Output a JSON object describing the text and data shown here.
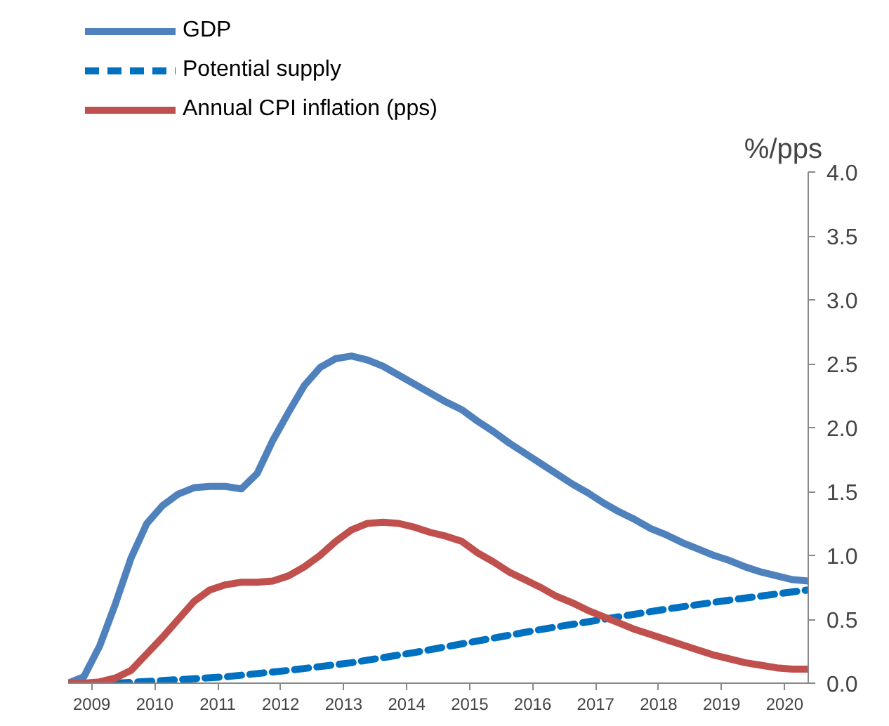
{
  "chart_data": {
    "type": "line",
    "ylabel": "%/pps",
    "x": [
      2009,
      2009.25,
      2009.5,
      2009.75,
      2010,
      2010.25,
      2010.5,
      2010.75,
      2011,
      2011.25,
      2011.5,
      2011.75,
      2012,
      2012.25,
      2012.5,
      2012.75,
      2013,
      2013.25,
      2013.5,
      2013.75,
      2014,
      2014.25,
      2014.5,
      2014.75,
      2015,
      2015.25,
      2015.5,
      2015.75,
      2016,
      2016.25,
      2016.5,
      2016.75,
      2017,
      2017.25,
      2017.5,
      2017.75,
      2018,
      2018.25,
      2018.5,
      2018.75,
      2019,
      2019.25,
      2019.5,
      2019.75,
      2020,
      2020.25,
      2020.5,
      2020.75
    ],
    "series": [
      {
        "name": "GDP",
        "color": "#4f81bd",
        "line_style": "solid",
        "values": [
          0,
          0.05,
          0.29,
          0.62,
          0.98,
          1.25,
          1.39,
          1.48,
          1.53,
          1.54,
          1.54,
          1.52,
          1.64,
          1.9,
          2.12,
          2.33,
          2.47,
          2.54,
          2.56,
          2.53,
          2.48,
          2.41,
          2.34,
          2.27,
          2.2,
          2.14,
          2.05,
          1.97,
          1.88,
          1.8,
          1.72,
          1.64,
          1.56,
          1.49,
          1.41,
          1.34,
          1.28,
          1.21,
          1.16,
          1.1,
          1.05,
          1.0,
          0.96,
          0.91,
          0.87,
          0.84,
          0.81,
          0.8
        ]
      },
      {
        "name": "Potential supply",
        "color": "#0070c0",
        "line_style": "dashed",
        "x": [
          2009.75,
          2010.5,
          2011.5,
          2012.5,
          2013.5,
          2014.5,
          2015.5,
          2016.5,
          2017.5,
          2018.5,
          2019.5,
          2020.75
        ],
        "values": [
          0,
          0.02,
          0.05,
          0.1,
          0.16,
          0.24,
          0.33,
          0.42,
          0.5,
          0.58,
          0.65,
          0.73
        ]
      },
      {
        "name": "Annual CPI inflation (pps)",
        "color": "#c0504d",
        "line_style": "solid",
        "values": [
          0,
          0,
          0.01,
          0.04,
          0.1,
          0.23,
          0.36,
          0.5,
          0.64,
          0.73,
          0.77,
          0.79,
          0.79,
          0.8,
          0.84,
          0.91,
          1.0,
          1.11,
          1.2,
          1.25,
          1.26,
          1.25,
          1.22,
          1.18,
          1.15,
          1.11,
          1.02,
          0.95,
          0.87,
          0.81,
          0.75,
          0.68,
          0.63,
          0.57,
          0.52,
          0.47,
          0.42,
          0.38,
          0.34,
          0.3,
          0.26,
          0.22,
          0.19,
          0.16,
          0.14,
          0.12,
          0.11,
          0.11
        ]
      }
    ],
    "xlim": [
      2009,
      2020.75
    ],
    "xticks": [
      {
        "value": 2009.375,
        "label": "2009"
      },
      {
        "value": 2010.375,
        "label": "2010"
      },
      {
        "value": 2011.375,
        "label": "2011"
      },
      {
        "value": 2012.375,
        "label": "2012"
      },
      {
        "value": 2013.375,
        "label": "2013"
      },
      {
        "value": 2014.375,
        "label": "2014"
      },
      {
        "value": 2015.375,
        "label": "2015"
      },
      {
        "value": 2016.375,
        "label": "2016"
      },
      {
        "value": 2017.375,
        "label": "2017"
      },
      {
        "value": 2018.375,
        "label": "2018"
      },
      {
        "value": 2019.375,
        "label": "2019"
      },
      {
        "value": 2020.375,
        "label": "2020"
      }
    ],
    "ylim": [
      0,
      4
    ],
    "yticks": [
      {
        "value": 0,
        "label": "0.0"
      },
      {
        "value": 0.5,
        "label": "0.5"
      },
      {
        "value": 1,
        "label": "1.0"
      },
      {
        "value": 1.5,
        "label": "1.5"
      },
      {
        "value": 2,
        "label": "2.0"
      },
      {
        "value": 2.5,
        "label": "2.5"
      },
      {
        "value": 3,
        "label": "3.0"
      },
      {
        "value": 3.5,
        "label": "3.5"
      },
      {
        "value": 4,
        "label": "4.0"
      }
    ],
    "grid": false,
    "legend": "top left",
    "marker": "none"
  }
}
